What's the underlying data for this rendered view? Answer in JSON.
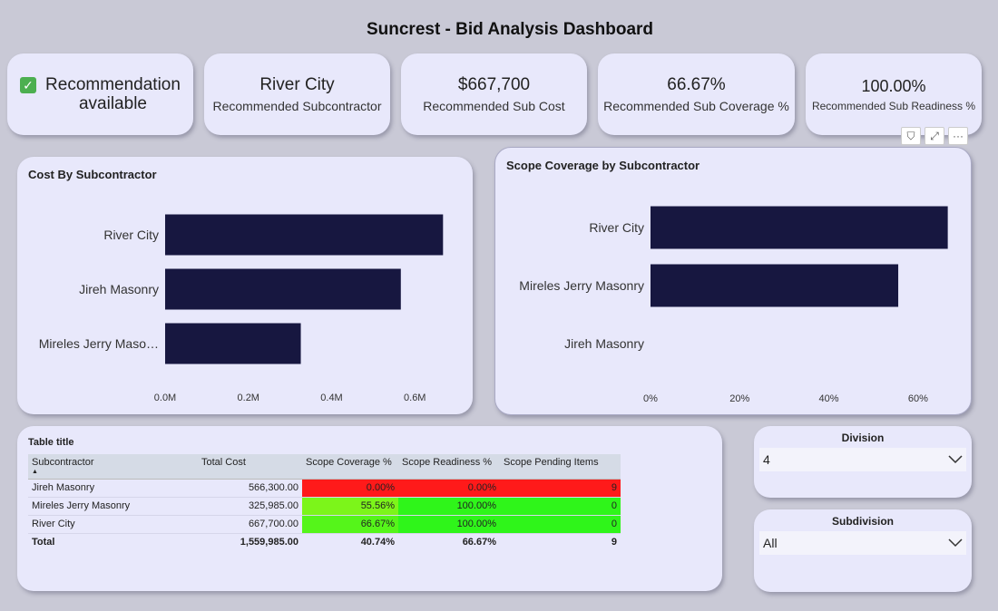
{
  "dashboard": {
    "title": "Suncrest - Bid Analysis Dashboard"
  },
  "recommendation": {
    "text_line1": "Recommendation",
    "text_line2": "available",
    "check_icon": "✓"
  },
  "kpis": [
    {
      "value": "River City",
      "label": "Recommended Subcontractor"
    },
    {
      "value": "$667,700",
      "label": "Recommended Sub Cost"
    },
    {
      "value": "66.67%",
      "label": "Recommended Sub Coverage %"
    },
    {
      "value": "100.00%",
      "label": "Recommended Sub Readiness %"
    }
  ],
  "toolbar": {
    "filter_icon": "⛉",
    "focus_icon": "⤢",
    "more_icon": "···"
  },
  "chart_data": [
    {
      "type": "bar",
      "orientation": "horizontal",
      "title": "Cost By Subcontractor",
      "categories": [
        "River City",
        "Jireh Masonry",
        "Mireles Jerry Maso…"
      ],
      "values": [
        667700,
        566300,
        325985
      ],
      "xlim": [
        0,
        800000
      ],
      "ticks": [
        0,
        200000,
        400000,
        600000
      ],
      "tick_labels": [
        "0.0M",
        "0.2M",
        "0.4M",
        "0.6M"
      ],
      "color": "#171740"
    },
    {
      "type": "bar",
      "orientation": "horizontal",
      "title": "Scope Coverage by Subcontractor",
      "categories": [
        "River City",
        "Mireles Jerry Masonry",
        "Jireh Masonry"
      ],
      "values": [
        66.67,
        55.56,
        0
      ],
      "xlim": [
        0,
        70
      ],
      "ticks": [
        0,
        20,
        40,
        60
      ],
      "tick_labels": [
        "0%",
        "20%",
        "40%",
        "60%"
      ],
      "color": "#171740"
    }
  ],
  "table": {
    "title": "Table title",
    "columns": [
      "Subcontractor",
      "Total Cost",
      "Scope Coverage %",
      "Scope Readiness %",
      "Scope Pending Items"
    ],
    "sort_icon": "▲",
    "rows": [
      {
        "name": "Jireh Masonry",
        "cost": "566,300.00",
        "coverage": "0.00%",
        "readiness": "0.00%",
        "pending": "9",
        "cov_color": "#ff1a1a",
        "read_color": "#ff1a1a",
        "pend_color": "#ff1a1a"
      },
      {
        "name": "Mireles Jerry Masonry",
        "cost": "325,985.00",
        "coverage": "55.56%",
        "readiness": "100.00%",
        "pending": "0",
        "cov_color": "#7cf51a",
        "read_color": "#2ff51a",
        "pend_color": "#2ff51a"
      },
      {
        "name": "River City",
        "cost": "667,700.00",
        "coverage": "66.67%",
        "readiness": "100.00%",
        "pending": "0",
        "cov_color": "#55f51a",
        "read_color": "#2ff51a",
        "pend_color": "#2ff51a"
      }
    ],
    "total": {
      "name": "Total",
      "cost": "1,559,985.00",
      "coverage": "40.74%",
      "readiness": "66.67%",
      "pending": "9"
    }
  },
  "slicers": {
    "division": {
      "title": "Division",
      "value": "4",
      "chevron_icon": "⌄"
    },
    "subdivision": {
      "title": "Subdivision",
      "value": "All",
      "chevron_icon": "⌄"
    }
  }
}
